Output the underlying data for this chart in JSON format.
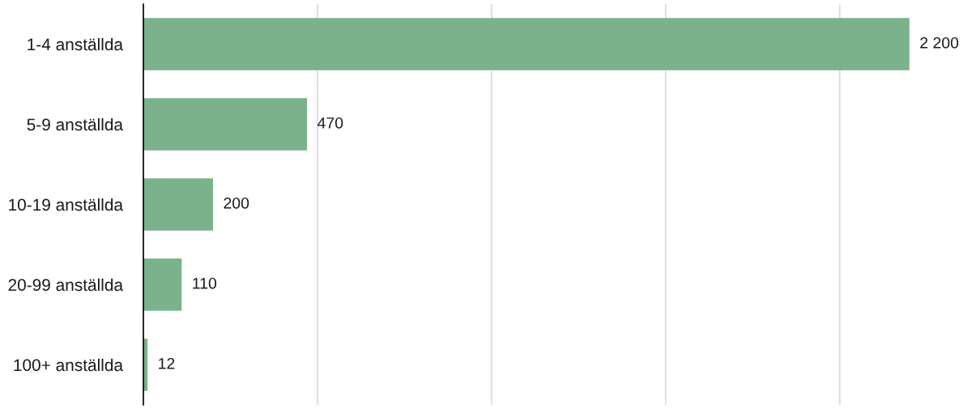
{
  "chart_data": {
    "type": "bar",
    "orientation": "horizontal",
    "categories": [
      "1-4 anställda",
      "5-9 anställda",
      "10-19 anställda",
      "20-99 anställda",
      "100+ anställda"
    ],
    "values": [
      2200,
      470,
      200,
      110,
      12
    ],
    "value_labels": [
      "2 200",
      "470",
      "200",
      "110",
      "12"
    ],
    "color": "#7bb28b",
    "xticks": [
      {
        "value": 500,
        "label": null
      },
      {
        "value": 1000,
        "label": null
      },
      {
        "value": 1500,
        "label": null
      },
      {
        "value": 2000,
        "label": null
      }
    ],
    "tick_labels": "y",
    "grid": "x",
    "legend": false
  }
}
